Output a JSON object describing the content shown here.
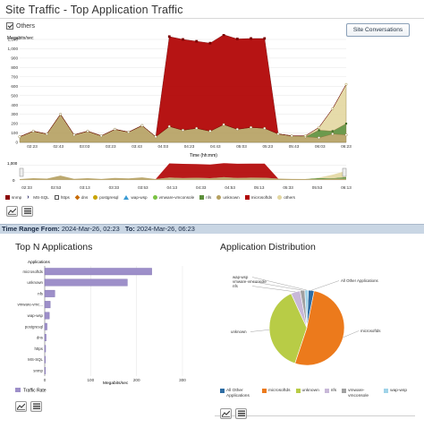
{
  "page": {
    "title": "Site Traffic - Top Application Traffic"
  },
  "controls": {
    "others_label": "Others",
    "others_checked": true,
    "site_conversations_label": "Site Conversations"
  },
  "main_chart": {
    "y_axis_title": "Megabits/sec",
    "y_ticks": [
      "1,100",
      "1,000",
      "900",
      "800",
      "700",
      "600",
      "500",
      "400",
      "300",
      "200",
      "100",
      "0"
    ],
    "x_ticks": [
      "02:23",
      "02:43",
      "03:03",
      "03:23",
      "03:43",
      "04:03",
      "04:23",
      "04:43",
      "05:03",
      "05:23",
      "05:43",
      "06:03",
      "06:23"
    ],
    "minor_x_ticks": [
      "02:33",
      "02:53",
      "03:13",
      "03:33",
      "03:53",
      "04:13",
      "04:33",
      "04:53",
      "05:13",
      "05:33",
      "05:53",
      "06:13"
    ],
    "x_axis_title": "Time (hh:mm)"
  },
  "chart_data": [
    {
      "type": "area",
      "title": "",
      "xlabel": "Time (hh:mm)",
      "ylabel": "Megabits/sec",
      "ylim": [
        0,
        1100
      ],
      "x": [
        "02:23",
        "02:33",
        "02:43",
        "02:53",
        "03:03",
        "03:13",
        "03:23",
        "03:33",
        "03:43",
        "03:53",
        "04:03",
        "04:13",
        "04:23",
        "04:33",
        "04:43",
        "04:53",
        "05:03",
        "05:13",
        "05:23",
        "05:33",
        "05:43",
        "05:53",
        "06:03",
        "06:13",
        "06:23"
      ],
      "series": [
        {
          "name": "microsoftds",
          "values": [
            0,
            0,
            0,
            0,
            0,
            0,
            0,
            0,
            0,
            0,
            0,
            960,
            970,
            930,
            940,
            960,
            965,
            950,
            960,
            0,
            0,
            0,
            0,
            0,
            0
          ]
        },
        {
          "name": "unknown",
          "values": [
            60,
            120,
            90,
            300,
            80,
            120,
            70,
            140,
            110,
            180,
            60,
            170,
            130,
            150,
            120,
            190,
            140,
            160,
            150,
            90,
            70,
            60,
            50,
            90,
            80
          ]
        },
        {
          "name": "nfs",
          "values": [
            0,
            0,
            0,
            0,
            0,
            0,
            0,
            0,
            0,
            0,
            0,
            0,
            0,
            0,
            0,
            0,
            0,
            0,
            0,
            0,
            0,
            0,
            80,
            30,
            120
          ]
        },
        {
          "name": "others",
          "values": [
            0,
            0,
            0,
            0,
            0,
            0,
            0,
            0,
            0,
            0,
            0,
            0,
            0,
            0,
            0,
            0,
            0,
            0,
            0,
            0,
            0,
            10,
            30,
            240,
            420
          ]
        }
      ],
      "legend": "bottom"
    },
    {
      "type": "bar",
      "title": "Top N Applications",
      "categories": [
        "microsoftds",
        "unknown",
        "nfs",
        "vmware-vmc...",
        "wap-wsp",
        "postgresql",
        "dns",
        "https",
        "MS-SQL",
        "snmp"
      ],
      "series": [
        {
          "name": "Traffic Rate",
          "values": [
            233,
            180,
            22,
            12,
            10,
            5,
            3,
            2,
            1,
            1
          ]
        }
      ],
      "xlabel": "Megabits/sec",
      "ylabel": "Applications",
      "xlim": [
        0,
        300
      ],
      "x_ticks": [
        "0",
        "100",
        "200",
        "300"
      ]
    },
    {
      "type": "pie",
      "title": "Application Distribution",
      "categories": [
        "All Other Applications",
        "microsoftds",
        "unknown",
        "nfs",
        "vmware-vmconsole",
        "wap-wsp"
      ],
      "values": [
        2.5,
        52,
        38,
        4,
        2,
        1.5
      ],
      "colors": [
        "#2e6da4",
        "#ec7a1c",
        "#b8cc46",
        "#c8b8d8",
        "#a0a0a0",
        "#9fd3e8"
      ]
    }
  ],
  "legend": [
    {
      "label": "snmp",
      "color": "#8b0000",
      "marker": "square"
    },
    {
      "label": "MS-SQL",
      "color": "#1a1a5a",
      "marker": "chevron"
    },
    {
      "label": "https",
      "color": "#ffffff",
      "marker": "square-outline"
    },
    {
      "label": "dns",
      "color": "#c86b00",
      "marker": "diamond"
    },
    {
      "label": "postgresql",
      "color": "#c9a400",
      "marker": "circle"
    },
    {
      "label": "wap-wsp",
      "color": "#3b9bd4",
      "marker": "triangle"
    },
    {
      "label": "vmware-vmconsole",
      "color": "#7ac243",
      "marker": "circle"
    },
    {
      "label": "nfs",
      "color": "#5c8f3a",
      "marker": "square"
    },
    {
      "label": "unknown",
      "color": "#b5a060",
      "marker": "circle"
    },
    {
      "label": "microsoftds",
      "color": "#b00000",
      "marker": "square"
    },
    {
      "label": "others",
      "color": "#e3d7a1",
      "marker": "circle"
    }
  ],
  "time_range": {
    "from_label": "Time Range From:",
    "from_value": "2024-Mar-26, 02:23",
    "to_label": "To:",
    "to_value": "2024-Mar-26, 06:23"
  },
  "top_n": {
    "title": "Top N Applications",
    "axis_title": "Applications",
    "x_axis_title": "Megabits/sec",
    "legend_label": "Traffic Rate",
    "bar_color": "#9d8fc9"
  },
  "distribution": {
    "title": "Application Distribution",
    "legend": [
      {
        "label": "All Other Applications",
        "color": "#2e6da4"
      },
      {
        "label": "microsoftds",
        "color": "#ec7a1c"
      },
      {
        "label": "unknown",
        "color": "#b8cc46"
      },
      {
        "label": "nfs",
        "color": "#c8b8d8"
      },
      {
        "label": "vmware-vmconsole",
        "color": "#a0a0a0"
      },
      {
        "label": "wap-wsp",
        "color": "#9fd3e8"
      }
    ]
  },
  "icons": {
    "line_chart": "line-chart-icon",
    "table_view": "table-icon"
  }
}
